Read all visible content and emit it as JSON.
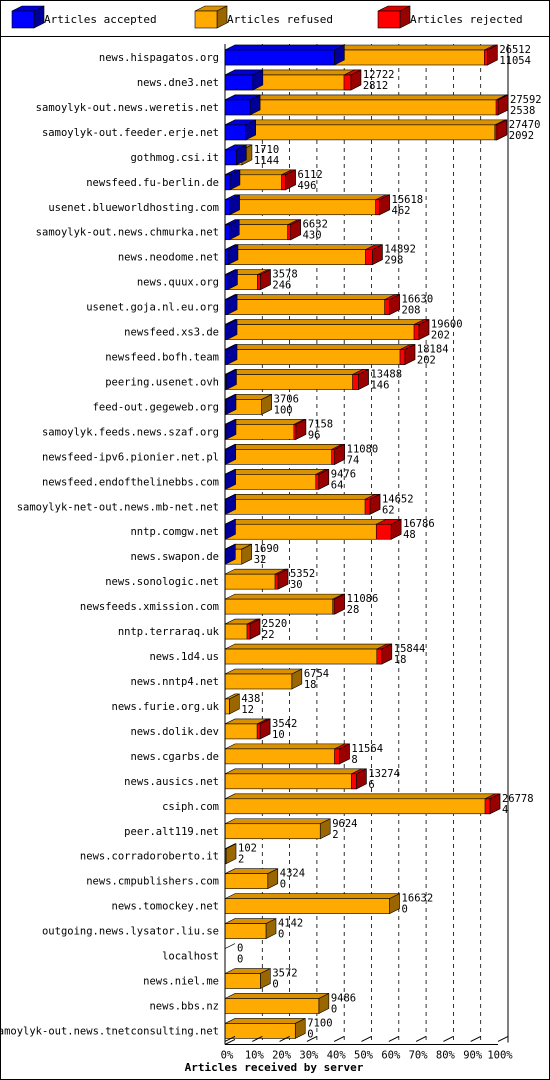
{
  "chart_data": {
    "type": "bar",
    "orientation": "horizontal",
    "stacked": true,
    "title": "",
    "xlabel": "Articles received by server",
    "ylabel": "",
    "xlim": [
      0,
      100
    ],
    "x_ticks": [
      "0%",
      "10%",
      "20%",
      "30%",
      "40%",
      "50%",
      "60%",
      "70%",
      "80%",
      "90%",
      "100%"
    ],
    "grid": "vertical dashed",
    "legend_position": "top",
    "legend": [
      {
        "label": "Articles accepted",
        "color": "#0000ff"
      },
      {
        "label": "Articles refused",
        "color": "#ffaa00"
      },
      {
        "label": "Articles rejected",
        "color": "#ff0000"
      }
    ],
    "categories": [
      "news.hispagatos.org",
      "news.dne3.net",
      "samoylyk-out.news.weretis.net",
      "samoylyk-out.feeder.erje.net",
      "gothmog.csi.it",
      "newsfeed.fu-berlin.de",
      "usenet.blueworldhosting.com",
      "samoylyk-out.news.chmurka.net",
      "news.neodome.net",
      "news.quux.org",
      "usenet.goja.nl.eu.org",
      "newsfeed.xs3.de",
      "newsfeed.bofh.team",
      "peering.usenet.ovh",
      "feed-out.gegeweb.org",
      "samoylyk.feeds.news.szaf.org",
      "newsfeed-ipv6.pionier.net.pl",
      "newsfeed.endofthelinebbs.com",
      "samoylyk-net-out.news.mb-net.net",
      "nntp.comgw.net",
      "news.swapon.de",
      "news.sonologic.net",
      "newsfeeds.xmission.com",
      "nntp.terraraq.uk",
      "news.1d4.us",
      "news.nntp4.net",
      "news.furie.org.uk",
      "news.dolik.dev",
      "news.cgarbs.de",
      "news.ausics.net",
      "csiph.com",
      "peer.alt119.net",
      "news.corradoroberto.it",
      "news.cmpublishers.com",
      "news.tomockey.net",
      "outgoing.news.lysator.liu.se",
      "localhost",
      "news.niel.me",
      "news.bbs.nz",
      "samoylyk-out.news.tnetconsulting.net"
    ],
    "offered": [
      26512,
      12722,
      27592,
      27470,
      1710,
      6112,
      15618,
      6632,
      14892,
      3578,
      16630,
      19600,
      18184,
      13488,
      3706,
      7158,
      11080,
      9476,
      14652,
      16786,
      1690,
      5352,
      11086,
      2520,
      15844,
      6754,
      438,
      3542,
      11564,
      13274,
      26778,
      9624,
      102,
      4324,
      16632,
      4142,
      0,
      3572,
      9486,
      7100
    ],
    "accepted": [
      11054,
      2812,
      2538,
      2092,
      1144,
      496,
      462,
      430,
      298,
      246,
      208,
      202,
      202,
      146,
      100,
      96,
      74,
      64,
      62,
      48,
      32,
      30,
      28,
      22,
      18,
      18,
      12,
      10,
      8,
      6,
      4,
      2,
      2,
      0,
      0,
      0,
      0,
      0,
      0,
      0
    ],
    "rejected": [
      300,
      700,
      200,
      200,
      0,
      400,
      400,
      300,
      700,
      300,
      500,
      500,
      500,
      600,
      0,
      200,
      300,
      300,
      500,
      1500,
      0,
      300,
      200,
      300,
      500,
      0,
      0,
      300,
      500,
      500,
      500,
      0,
      0,
      0,
      0,
      0,
      0,
      0,
      0,
      0
    ]
  }
}
